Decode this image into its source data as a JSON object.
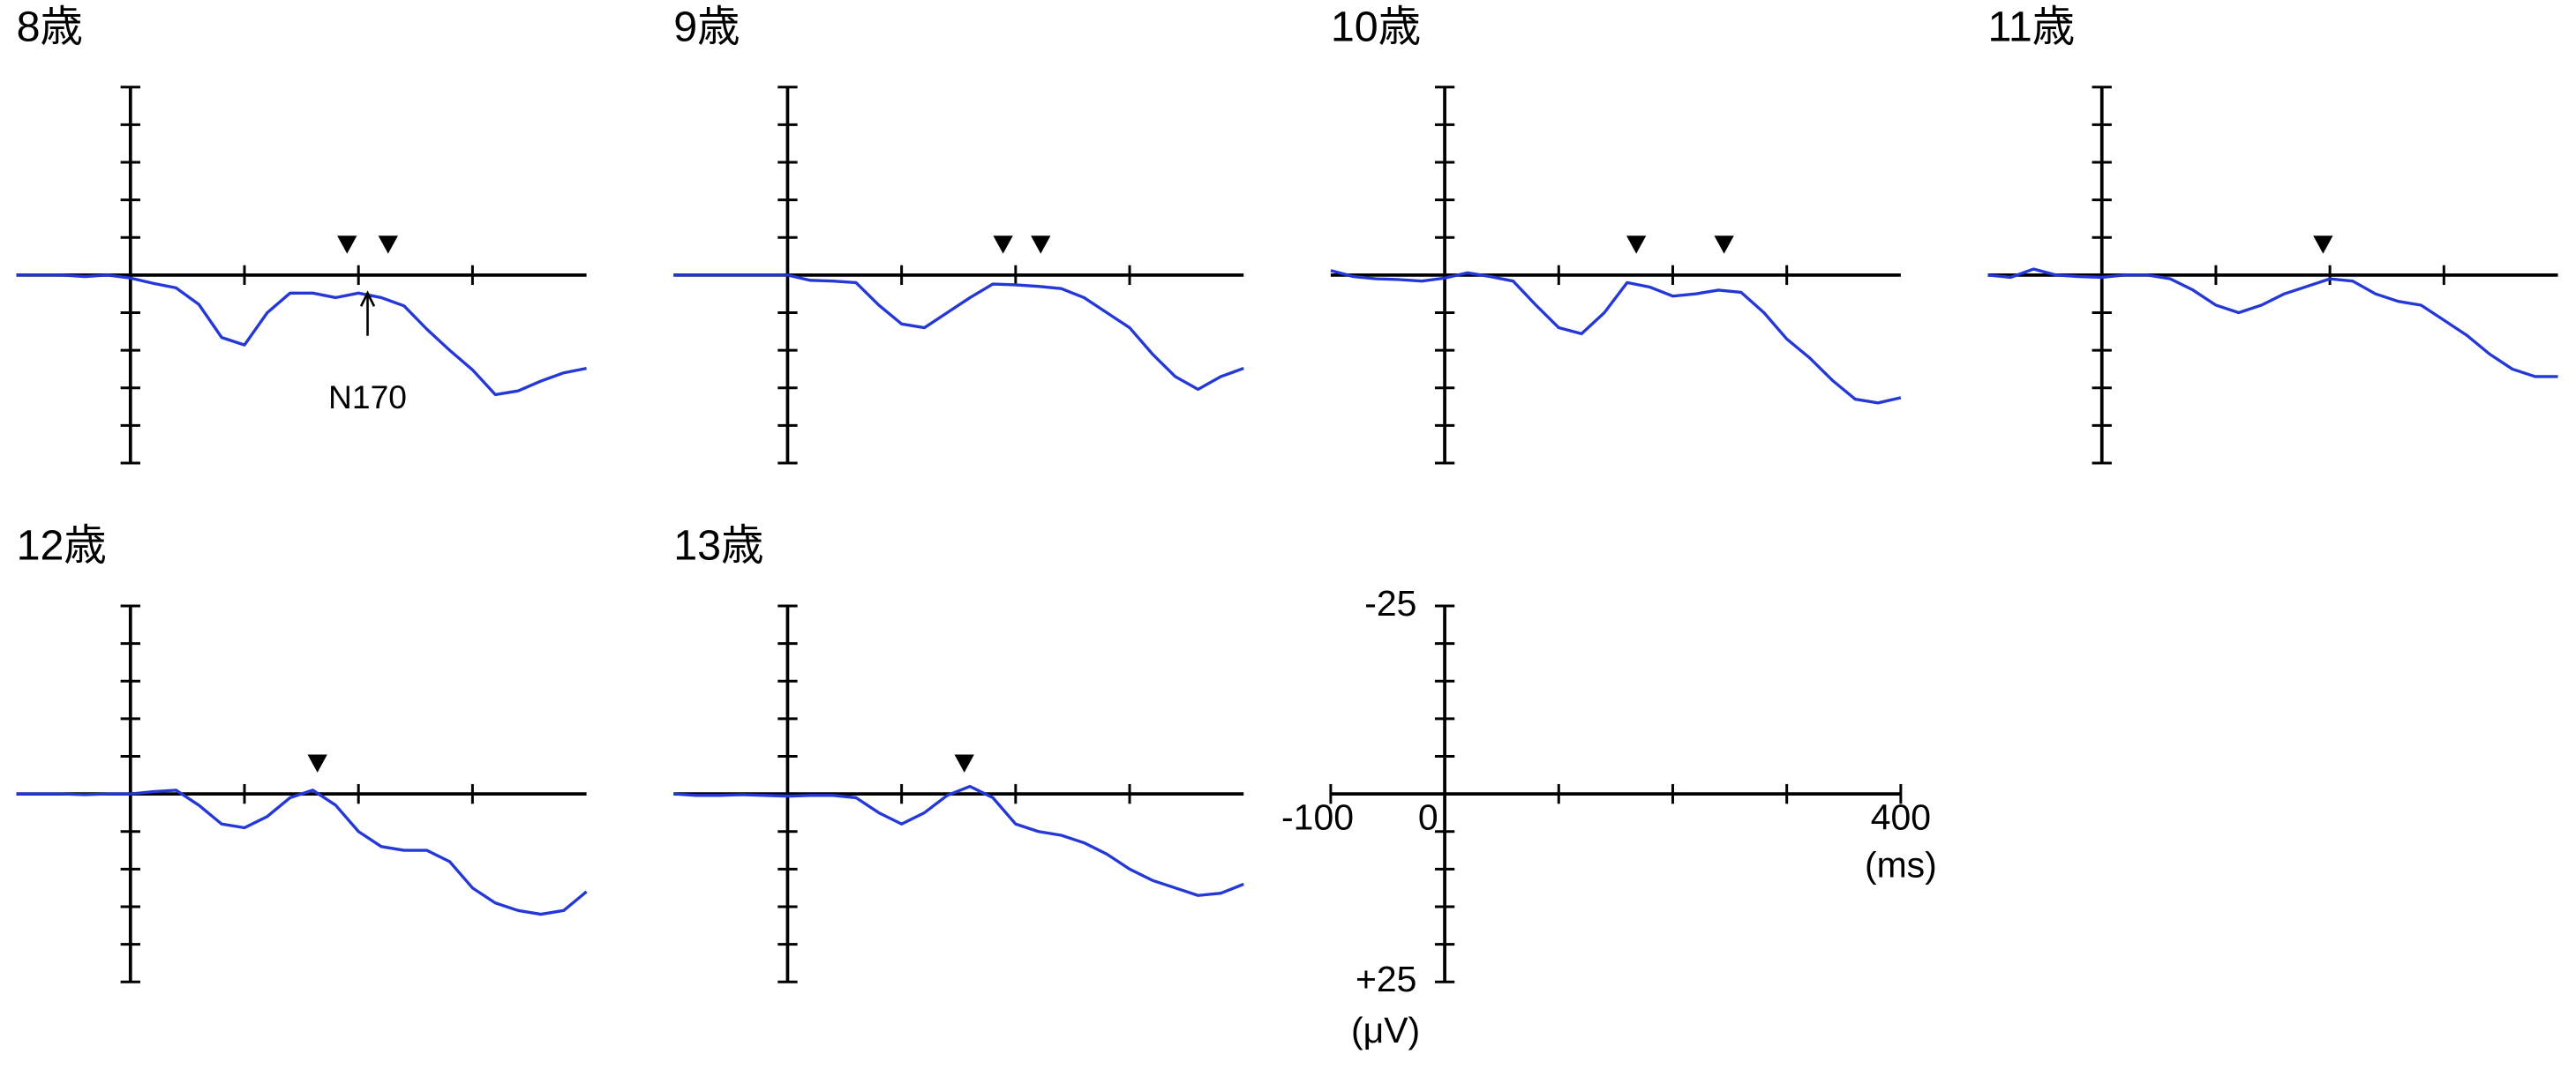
{
  "chart_data": [
    {
      "type": "line",
      "title": "8歳",
      "color": "#2438d8",
      "invert_y": true,
      "xlim": [
        -100,
        400
      ],
      "ylim": [
        -25,
        25
      ],
      "minor_xticks": [
        100,
        200,
        300
      ],
      "minor_yticks": [
        -25,
        -20,
        -15,
        -10,
        -5,
        5,
        10,
        15,
        20,
        25
      ],
      "x": [
        -100,
        -80,
        -60,
        -40,
        -20,
        0,
        20,
        40,
        60,
        80,
        100,
        120,
        140,
        160,
        180,
        200,
        220,
        240,
        260,
        280,
        300,
        320,
        340,
        360,
        380,
        400
      ],
      "values": [
        0,
        0,
        0,
        0.2,
        0,
        0.4,
        1.1,
        1.7,
        3.9,
        8.3,
        9.3,
        5,
        2.4,
        2.4,
        3,
        2.4,
        3,
        4.1,
        7.2,
        10,
        12.6,
        15.9,
        15.4,
        14.1,
        13,
        12.4
      ],
      "peaks": [
        190,
        226
      ],
      "annotation": "N170"
    },
    {
      "type": "line",
      "title": "9歳",
      "color": "#2438d8",
      "invert_y": true,
      "xlim": [
        -100,
        400
      ],
      "ylim": [
        -25,
        25
      ],
      "minor_xticks": [
        100,
        200,
        300
      ],
      "minor_yticks": [
        -25,
        -20,
        -15,
        -10,
        -5,
        5,
        10,
        15,
        20,
        25
      ],
      "x": [
        -100,
        -80,
        -60,
        -40,
        -20,
        0,
        20,
        40,
        60,
        80,
        100,
        120,
        140,
        160,
        180,
        200,
        220,
        240,
        260,
        280,
        300,
        320,
        340,
        360,
        380,
        400
      ],
      "values": [
        0,
        0,
        0,
        0,
        0,
        0,
        0.7,
        0.8,
        1,
        4,
        6.5,
        7,
        5,
        3,
        1.2,
        1.3,
        1.5,
        1.8,
        3,
        5,
        7,
        10.5,
        13.5,
        15.2,
        13.5,
        12.4
      ],
      "peaks": [
        189,
        222
      ]
    },
    {
      "type": "line",
      "title": "10歳",
      "color": "#2438d8",
      "invert_y": true,
      "xlim": [
        -100,
        400
      ],
      "ylim": [
        -25,
        25
      ],
      "minor_xticks": [
        100,
        200,
        300
      ],
      "minor_yticks": [
        -25,
        -20,
        -15,
        -10,
        -5,
        5,
        10,
        15,
        20,
        25
      ],
      "x": [
        -100,
        -80,
        -60,
        -40,
        -20,
        0,
        20,
        40,
        60,
        80,
        100,
        120,
        140,
        160,
        180,
        200,
        220,
        240,
        260,
        280,
        300,
        320,
        340,
        360,
        380,
        400
      ],
      "values": [
        -0.6,
        0.2,
        0.5,
        0.6,
        0.8,
        0.4,
        -0.3,
        0.2,
        0.8,
        4,
        7,
        7.8,
        5,
        1,
        1.6,
        2.8,
        2.5,
        2,
        2.3,
        5,
        8.5,
        11,
        14,
        16.5,
        17,
        16.3
      ],
      "peaks": [
        168,
        245
      ]
    },
    {
      "type": "line",
      "title": "11歳",
      "color": "#2438d8",
      "invert_y": true,
      "xlim": [
        -100,
        400
      ],
      "ylim": [
        -25,
        25
      ],
      "minor_xticks": [
        100,
        200,
        300
      ],
      "minor_yticks": [
        -25,
        -20,
        -15,
        -10,
        -5,
        5,
        10,
        15,
        20,
        25
      ],
      "x": [
        -100,
        -80,
        -60,
        -40,
        -20,
        0,
        20,
        40,
        60,
        80,
        100,
        120,
        140,
        160,
        180,
        200,
        220,
        240,
        260,
        280,
        300,
        320,
        340,
        360,
        380,
        400
      ],
      "values": [
        0,
        0.3,
        -0.8,
        0,
        0.2,
        0.3,
        0,
        0,
        0.5,
        2,
        4,
        5,
        4,
        2.5,
        1.5,
        0.5,
        0.8,
        2.5,
        3.5,
        4,
        6,
        8,
        10.5,
        12.5,
        13.5,
        13.5
      ],
      "peaks": [
        194
      ]
    },
    {
      "type": "line",
      "title": "12歳",
      "color": "#2438d8",
      "invert_y": true,
      "xlim": [
        -100,
        400
      ],
      "ylim": [
        -25,
        25
      ],
      "minor_xticks": [
        100,
        200,
        300
      ],
      "minor_yticks": [
        -25,
        -20,
        -15,
        -10,
        -5,
        5,
        10,
        15,
        20,
        25
      ],
      "x": [
        -100,
        -80,
        -60,
        -40,
        -20,
        0,
        20,
        40,
        60,
        80,
        100,
        120,
        140,
        160,
        180,
        200,
        220,
        240,
        260,
        280,
        300,
        320,
        340,
        360,
        380,
        400
      ],
      "values": [
        0,
        0,
        0,
        0.1,
        0,
        0,
        -0.3,
        -0.5,
        1.5,
        4,
        4.5,
        3,
        0.5,
        -0.5,
        1.5,
        5,
        7,
        7.5,
        7.5,
        9,
        12.5,
        14.5,
        15.5,
        16,
        15.5,
        13
      ],
      "peaks": [
        164
      ]
    },
    {
      "type": "line",
      "title": "13歳",
      "color": "#2438d8",
      "invert_y": true,
      "xlim": [
        -100,
        400
      ],
      "ylim": [
        -25,
        25
      ],
      "minor_xticks": [
        100,
        200,
        300
      ],
      "minor_yticks": [
        -25,
        -20,
        -15,
        -10,
        -5,
        5,
        10,
        15,
        20,
        25
      ],
      "x": [
        -100,
        -80,
        -60,
        -40,
        -20,
        0,
        20,
        40,
        60,
        80,
        100,
        120,
        140,
        160,
        180,
        200,
        220,
        240,
        260,
        280,
        300,
        320,
        340,
        360,
        380,
        400
      ],
      "values": [
        0,
        0.2,
        0.2,
        0.1,
        0.2,
        0.3,
        0.2,
        0.2,
        0.5,
        2.5,
        4,
        2.5,
        0.2,
        -1,
        0.5,
        4,
        5,
        5.5,
        6.5,
        8,
        10,
        11.5,
        12.5,
        13.5,
        13.2,
        12
      ],
      "peaks": [
        155
      ]
    },
    {
      "type": "axes",
      "invert_y": true,
      "xlim": [
        -100,
        400
      ],
      "ylim": [
        -25,
        25
      ],
      "xticks": [
        -100,
        0,
        400
      ],
      "yticks": [
        -25,
        {
          "value": 25,
          "label": "+25"
        }
      ],
      "minor_xticks": [
        100,
        200,
        300
      ],
      "minor_yticks": [
        -20,
        -15,
        -10,
        -5,
        5,
        10,
        15,
        20
      ],
      "x_label": "(ms)",
      "y_label": "(μV)"
    }
  ]
}
